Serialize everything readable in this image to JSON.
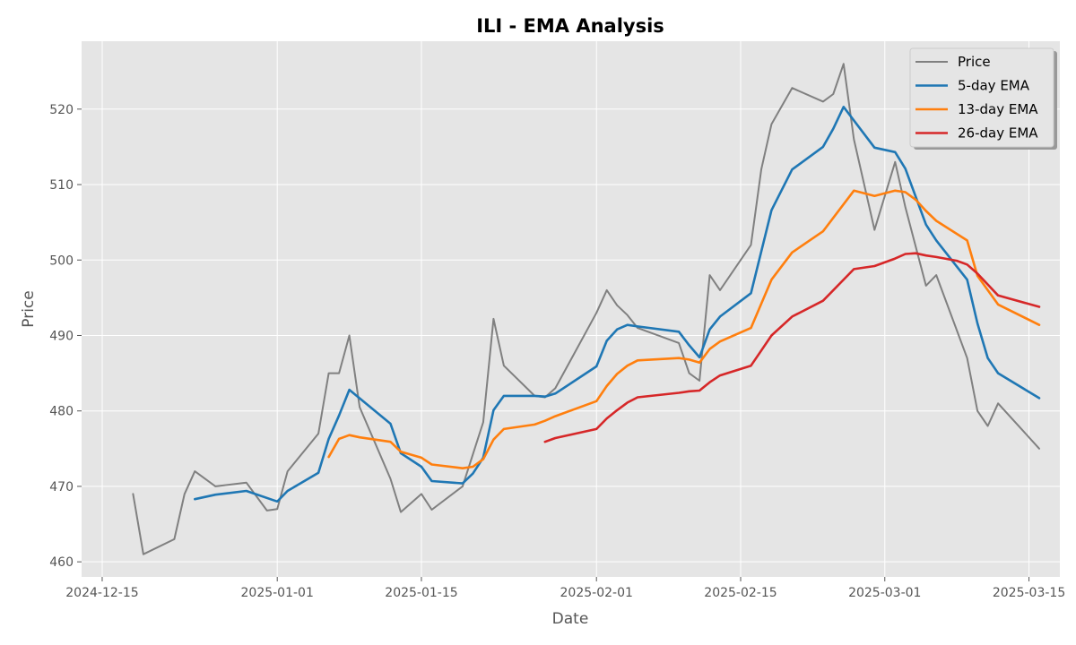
{
  "chart_data": {
    "type": "line",
    "title": "ILI - EMA Analysis",
    "xlabel": "Date",
    "ylabel": "Price",
    "xlim": [
      "2024-12-13",
      "2025-03-18"
    ],
    "ylim": [
      458,
      529
    ],
    "x_ticks": [
      "2024-12-15",
      "2025-01-01",
      "2025-01-15",
      "2025-02-01",
      "2025-02-15",
      "2025-03-01",
      "2025-03-15"
    ],
    "y_ticks": [
      460,
      470,
      480,
      490,
      500,
      510,
      520
    ],
    "grid": true,
    "legend_position": "top-right",
    "series": [
      {
        "name": "Price",
        "color": "#808080",
        "x": [
          "2024-12-18",
          "2024-12-19",
          "2024-12-22",
          "2024-12-23",
          "2024-12-24",
          "2024-12-26",
          "2024-12-29",
          "2024-12-31",
          "2025-01-01",
          "2025-01-02",
          "2025-01-05",
          "2025-01-06",
          "2025-01-07",
          "2025-01-08",
          "2025-01-09",
          "2025-01-12",
          "2025-01-13",
          "2025-01-15",
          "2025-01-16",
          "2025-01-19",
          "2025-01-21",
          "2025-01-22",
          "2025-01-23",
          "2025-01-26",
          "2025-01-27",
          "2025-01-28",
          "2025-02-01",
          "2025-02-02",
          "2025-02-03",
          "2025-02-04",
          "2025-02-05",
          "2025-02-09",
          "2025-02-10",
          "2025-02-11",
          "2025-02-12",
          "2025-02-13",
          "2025-02-16",
          "2025-02-17",
          "2025-02-18",
          "2025-02-20",
          "2025-02-23",
          "2025-02-24",
          "2025-02-25",
          "2025-02-26",
          "2025-02-28",
          "2025-03-02",
          "2025-03-03",
          "2025-03-05",
          "2025-03-06",
          "2025-03-09",
          "2025-03-10",
          "2025-03-11",
          "2025-03-12",
          "2025-03-16"
        ],
        "values": [
          469.0,
          461.0,
          463.0,
          469.0,
          472.0,
          470.0,
          470.5,
          466.8,
          467.0,
          472.0,
          477.0,
          485.0,
          485.0,
          490.0,
          480.5,
          471.0,
          466.6,
          469.0,
          466.9,
          470.0,
          478.5,
          492.2,
          486.0,
          482.0,
          481.8,
          483.0,
          493.0,
          496.0,
          494.0,
          492.7,
          491.0,
          489.0,
          485.0,
          484.0,
          498.0,
          496.0,
          502.0,
          512.0,
          518.0,
          522.8,
          521.0,
          522.0,
          526.0,
          516.0,
          504.0,
          513.0,
          507.0,
          496.6,
          498.0,
          487.0,
          480.0,
          478.0,
          481.0,
          475.0
        ]
      },
      {
        "name": "5-day EMA",
        "color": "#1f77b4",
        "x": [
          "2024-12-24",
          "2024-12-26",
          "2024-12-29",
          "2025-01-01",
          "2025-01-02",
          "2025-01-05",
          "2025-01-06",
          "2025-01-07",
          "2025-01-08",
          "2025-01-12",
          "2025-01-13",
          "2025-01-15",
          "2025-01-16",
          "2025-01-19",
          "2025-01-20",
          "2025-01-21",
          "2025-01-22",
          "2025-01-23",
          "2025-01-26",
          "2025-01-27",
          "2025-01-28",
          "2025-02-01",
          "2025-02-02",
          "2025-02-03",
          "2025-02-04",
          "2025-02-05",
          "2025-02-09",
          "2025-02-10",
          "2025-02-11",
          "2025-02-12",
          "2025-02-13",
          "2025-02-16",
          "2025-02-18",
          "2025-02-20",
          "2025-02-23",
          "2025-02-24",
          "2025-02-25",
          "2025-02-28",
          "2025-03-02",
          "2025-03-03",
          "2025-03-05",
          "2025-03-06",
          "2025-03-09",
          "2025-03-10",
          "2025-03-11",
          "2025-03-12",
          "2025-03-16"
        ],
        "values": [
          468.3,
          468.9,
          469.4,
          468.0,
          469.4,
          471.8,
          476.3,
          479.4,
          482.8,
          478.3,
          474.4,
          472.6,
          470.7,
          470.4,
          471.7,
          473.8,
          480.1,
          482.0,
          482.0,
          481.9,
          482.3,
          485.9,
          489.3,
          490.8,
          491.4,
          491.2,
          490.5,
          488.7,
          487.1,
          490.8,
          492.5,
          495.6,
          506.6,
          512.0,
          515.0,
          517.4,
          520.3,
          514.9,
          514.3,
          512.1,
          504.7,
          502.6,
          497.4,
          491.6,
          487.0,
          485.0,
          481.7
        ]
      },
      {
        "name": "13-day EMA",
        "color": "#ff7f0e",
        "x": [
          "2025-01-06",
          "2025-01-07",
          "2025-01-08",
          "2025-01-09",
          "2025-01-12",
          "2025-01-13",
          "2025-01-15",
          "2025-01-16",
          "2025-01-19",
          "2025-01-20",
          "2025-01-21",
          "2025-01-22",
          "2025-01-23",
          "2025-01-26",
          "2025-01-27",
          "2025-01-28",
          "2025-02-01",
          "2025-02-02",
          "2025-02-03",
          "2025-02-04",
          "2025-02-05",
          "2025-02-09",
          "2025-02-10",
          "2025-02-11",
          "2025-02-12",
          "2025-02-13",
          "2025-02-16",
          "2025-02-18",
          "2025-02-20",
          "2025-02-23",
          "2025-02-26",
          "2025-02-28",
          "2025-03-02",
          "2025-03-03",
          "2025-03-04",
          "2025-03-05",
          "2025-03-06",
          "2025-03-09",
          "2025-03-10",
          "2025-03-12",
          "2025-03-16"
        ],
        "values": [
          473.9,
          476.3,
          476.8,
          476.5,
          475.9,
          474.6,
          473.8,
          472.9,
          472.4,
          472.6,
          473.6,
          476.2,
          477.6,
          478.2,
          478.7,
          479.3,
          481.3,
          483.3,
          484.9,
          486.0,
          486.7,
          487.0,
          486.8,
          486.4,
          488.2,
          489.2,
          491.0,
          497.4,
          501.0,
          503.8,
          509.2,
          508.5,
          509.2,
          509.0,
          508.0,
          506.5,
          505.2,
          502.6,
          497.9,
          494.1,
          491.4
        ]
      },
      {
        "name": "26-day EMA",
        "color": "#d62728",
        "x": [
          "2025-01-27",
          "2025-01-28",
          "2025-02-01",
          "2025-02-02",
          "2025-02-03",
          "2025-02-04",
          "2025-02-05",
          "2025-02-09",
          "2025-02-10",
          "2025-02-11",
          "2025-02-12",
          "2025-02-13",
          "2025-02-16",
          "2025-02-17",
          "2025-02-18",
          "2025-02-20",
          "2025-02-23",
          "2025-02-26",
          "2025-02-28",
          "2025-03-02",
          "2025-03-03",
          "2025-03-04",
          "2025-03-05",
          "2025-03-06",
          "2025-03-08",
          "2025-03-09",
          "2025-03-10",
          "2025-03-12",
          "2025-03-16"
        ],
        "values": [
          475.9,
          476.4,
          477.6,
          479.0,
          480.1,
          481.1,
          481.8,
          482.4,
          482.6,
          482.7,
          483.8,
          484.7,
          486.0,
          488.0,
          490.0,
          492.5,
          494.6,
          498.8,
          499.2,
          500.2,
          500.8,
          500.9,
          500.6,
          500.4,
          499.9,
          499.4,
          498.2,
          495.3,
          493.8
        ]
      }
    ]
  }
}
